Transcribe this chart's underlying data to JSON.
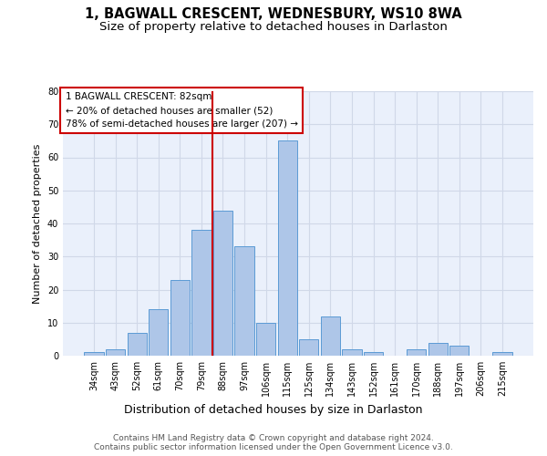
{
  "title": "1, BAGWALL CRESCENT, WEDNESBURY, WS10 8WA",
  "subtitle": "Size of property relative to detached houses in Darlaston",
  "xlabel": "Distribution of detached houses by size in Darlaston",
  "ylabel": "Number of detached properties",
  "categories": [
    "34sqm",
    "43sqm",
    "52sqm",
    "61sqm",
    "70sqm",
    "79sqm",
    "88sqm",
    "97sqm",
    "106sqm",
    "115sqm",
    "125sqm",
    "134sqm",
    "143sqm",
    "152sqm",
    "161sqm",
    "170sqm",
    "188sqm",
    "197sqm",
    "206sqm",
    "215sqm"
  ],
  "values": [
    1,
    2,
    7,
    14,
    23,
    38,
    44,
    33,
    10,
    65,
    5,
    12,
    2,
    1,
    0,
    2,
    4,
    3,
    0,
    1
  ],
  "bar_color": "#aec6e8",
  "bar_edge_color": "#5b9bd5",
  "vline_x": 5.5,
  "vline_color": "#cc0000",
  "annotation_line1": "1 BAGWALL CRESCENT: 82sqm",
  "annotation_line2": "← 20% of detached houses are smaller (52)",
  "annotation_line3": "78% of semi-detached houses are larger (207) →",
  "ylim": [
    0,
    80
  ],
  "yticks": [
    0,
    10,
    20,
    30,
    40,
    50,
    60,
    70,
    80
  ],
  "grid_color": "#d0d8e8",
  "background_color": "#eaf0fb",
  "footer_text": "Contains HM Land Registry data © Crown copyright and database right 2024.\nContains public sector information licensed under the Open Government Licence v3.0.",
  "title_fontsize": 10.5,
  "subtitle_fontsize": 9.5,
  "xlabel_fontsize": 9,
  "ylabel_fontsize": 8,
  "tick_fontsize": 7,
  "annotation_fontsize": 7.5,
  "footer_fontsize": 6.5
}
